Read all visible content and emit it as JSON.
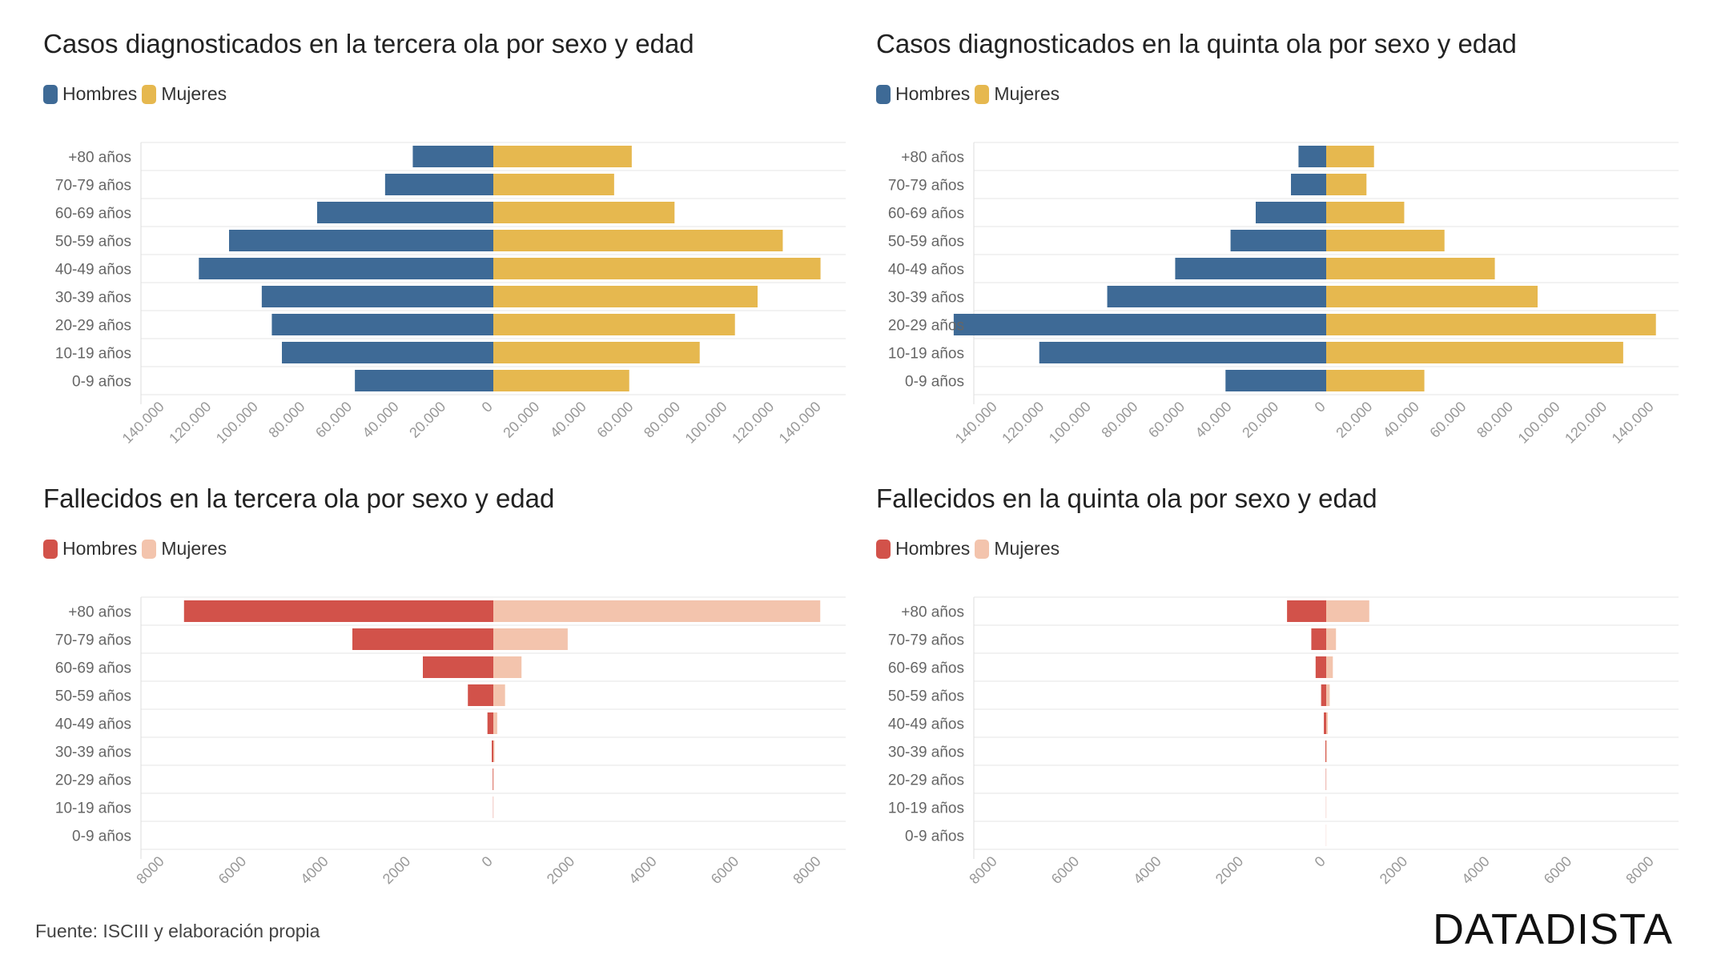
{
  "footer": {
    "source": "Fuente: ISCIII y elaboración propia",
    "brand": "DATADISTA"
  },
  "chart_data": [
    {
      "type": "bar",
      "title": "Casos diagnosticados en la tercera ola por sexo y edad",
      "categories": [
        "+80 años",
        "70-79 años",
        "60-69 años",
        "50-59 años",
        "40-49 años",
        "30-39 años",
        "20-29 años",
        "10-19 años",
        "0-9 años"
      ],
      "series": [
        {
          "name": "Hombres",
          "color": "#3e6a96",
          "values": [
            32000,
            43000,
            70000,
            105000,
            117000,
            92000,
            88000,
            84000,
            55000
          ]
        },
        {
          "name": "Mujeres",
          "color": "#e6b84f",
          "values": [
            55000,
            48000,
            72000,
            115000,
            130000,
            105000,
            96000,
            82000,
            54000
          ]
        }
      ],
      "ticks": [
        "140.000",
        "120.000",
        "100.000",
        "80.000",
        "60.000",
        "40.000",
        "20.000",
        "0",
        "20.000",
        "40.000",
        "60.000",
        "80.000",
        "100.000",
        "120.000",
        "140.000"
      ],
      "xlim": [
        -140000,
        140000
      ],
      "legend": "top-left"
    },
    {
      "type": "bar",
      "title": "Casos diagnosticados en la quinta ola por sexo y edad",
      "categories": [
        "+80 años",
        "70-79 años",
        "60-69 años",
        "50-59 años",
        "40-49 años",
        "30-39 años",
        "20-29 años",
        "10-19 años",
        "0-9 años"
      ],
      "series": [
        {
          "name": "Hombres",
          "color": "#3e6a96",
          "values": [
            11000,
            14000,
            28000,
            38000,
            60000,
            87000,
            148000,
            114000,
            40000
          ]
        },
        {
          "name": "Mujeres",
          "color": "#e6b84f",
          "values": [
            19000,
            16000,
            31000,
            47000,
            67000,
            84000,
            131000,
            118000,
            39000
          ]
        }
      ],
      "ticks": [
        "140.000",
        "120.000",
        "100.000",
        "80.000",
        "60.000",
        "40.000",
        "20.000",
        "0",
        "20.000",
        "40.000",
        "60.000",
        "80.000",
        "100.000",
        "120.000",
        "140.000"
      ],
      "xlim": [
        -140000,
        140000
      ],
      "legend": "top-left"
    },
    {
      "type": "bar",
      "title": "Fallecidos en la tercera ola por sexo y edad",
      "categories": [
        "+80 años",
        "70-79 años",
        "60-69 años",
        "50-59 años",
        "40-49 años",
        "30-39 años",
        "20-29 años",
        "10-19 años",
        "0-9 años"
      ],
      "series": [
        {
          "name": "Hombres",
          "color": "#d2524a",
          "values": [
            7900,
            3600,
            1800,
            650,
            150,
            40,
            15,
            5,
            0
          ]
        },
        {
          "name": "Mujeres",
          "color": "#f3c4ad",
          "values": [
            8350,
            1900,
            720,
            300,
            100,
            30,
            10,
            5,
            0
          ]
        }
      ],
      "ticks": [
        "8000",
        "6000",
        "4000",
        "2000",
        "0",
        "2000",
        "4000",
        "6000",
        "8000"
      ],
      "xlim": [
        -9000,
        9000
      ],
      "legend": "top-left"
    },
    {
      "type": "bar",
      "title": "Fallecidos en la quinta ola por sexo y edad",
      "categories": [
        "+80 años",
        "70-79 años",
        "60-69 años",
        "50-59 años",
        "40-49 años",
        "30-39 años",
        "20-29 años",
        "10-19 años",
        "0-9 años"
      ],
      "series": [
        {
          "name": "Hombres",
          "color": "#d2524a",
          "values": [
            1000,
            380,
            270,
            130,
            60,
            20,
            8,
            3,
            2
          ]
        },
        {
          "name": "Mujeres",
          "color": "#f3c4ad",
          "values": [
            1100,
            250,
            170,
            90,
            40,
            15,
            5,
            3,
            2
          ]
        }
      ],
      "ticks": [
        "8000",
        "6000",
        "4000",
        "2000",
        "0",
        "2000",
        "4000",
        "6000",
        "8000"
      ],
      "xlim": [
        -9000,
        9000
      ],
      "legend": "top-left"
    }
  ]
}
